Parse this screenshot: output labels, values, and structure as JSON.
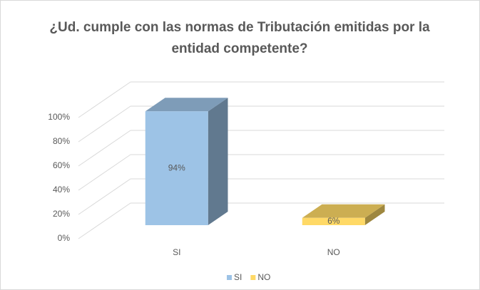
{
  "chart_data": {
    "type": "bar3d",
    "title": "¿Ud. cumple con las normas de Tributación emitidas por la entidad competente?",
    "categories": [
      "SI",
      "NO"
    ],
    "values": [
      94,
      6
    ],
    "value_labels": [
      "94%",
      "6%"
    ],
    "colors": [
      "#9dc3e6",
      "#ffd966"
    ],
    "ylim": [
      0,
      100
    ],
    "yticks": [
      {
        "value": 0,
        "label": "0%"
      },
      {
        "value": 20,
        "label": "20%"
      },
      {
        "value": 40,
        "label": "40%"
      },
      {
        "value": 60,
        "label": "60%"
      },
      {
        "value": 80,
        "label": "80%"
      },
      {
        "value": 100,
        "label": "100%"
      }
    ],
    "grid": true,
    "legend": "bottom"
  }
}
